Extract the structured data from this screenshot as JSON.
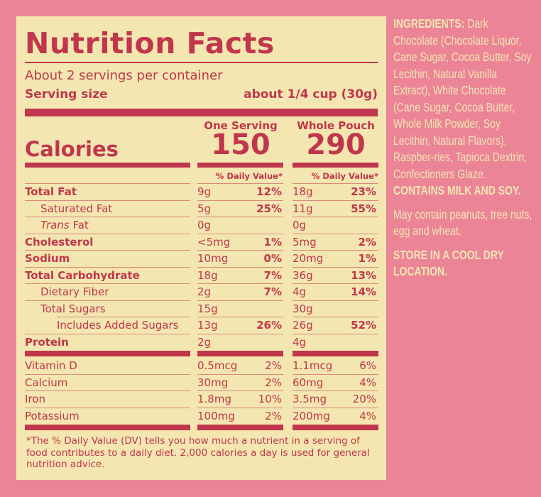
{
  "colors": {
    "background": "#ec8497",
    "panel": "#f3e6b1",
    "accent": "#c0364c"
  },
  "label": {
    "title": "Nutrition Facts",
    "servings_per_container": "About 2 servings per container",
    "serving_size_label": "Serving size",
    "serving_size_value": "about 1/4 cup (30g)",
    "calories_label": "Calories",
    "columns": [
      {
        "header": "One Serving",
        "calories": "150",
        "dv_header": "% Daily Value*"
      },
      {
        "header": "Whole Pouch",
        "calories": "290",
        "dv_header": "% Daily Value*"
      }
    ],
    "nutrients": [
      {
        "name": "Total Fat",
        "bold": true,
        "indent": 0,
        "one": "9g",
        "one_dv": "12%",
        "whole": "18g",
        "whole_dv": "23%"
      },
      {
        "name": "Saturated Fat",
        "bold": false,
        "indent": 1,
        "one": "5g",
        "one_dv": "25%",
        "whole": "11g",
        "whole_dv": "55%"
      },
      {
        "name": "Trans",
        "name_suffix": " Fat",
        "bold": false,
        "italic": true,
        "indent": 1,
        "one": "0g",
        "one_dv": "",
        "whole": "0g",
        "whole_dv": ""
      },
      {
        "name": "Cholesterol",
        "bold": true,
        "indent": 0,
        "one": "<5mg",
        "one_dv": "1%",
        "whole": "5mg",
        "whole_dv": "2%"
      },
      {
        "name": "Sodium",
        "bold": true,
        "indent": 0,
        "one": "10mg",
        "one_dv": "0%",
        "whole": "20mg",
        "whole_dv": "1%"
      },
      {
        "name": "Total Carbohydrate",
        "bold": true,
        "indent": 0,
        "one": "18g",
        "one_dv": "7%",
        "whole": "36g",
        "whole_dv": "13%"
      },
      {
        "name": "Dietary Fiber",
        "bold": false,
        "indent": 1,
        "one": "2g",
        "one_dv": "7%",
        "whole": "4g",
        "whole_dv": "14%"
      },
      {
        "name": "Total Sugars",
        "bold": false,
        "indent": 1,
        "one": "15g",
        "one_dv": "",
        "whole": "30g",
        "whole_dv": ""
      },
      {
        "name": "Includes Added Sugars",
        "bold": false,
        "indent": 2,
        "one": "13g",
        "one_dv": "26%",
        "whole": "26g",
        "whole_dv": "52%"
      },
      {
        "name": "Protein",
        "bold": true,
        "indent": 0,
        "one": "2g",
        "one_dv": "",
        "whole": "4g",
        "whole_dv": ""
      }
    ],
    "vitamins": [
      {
        "name": "Vitamin D",
        "one": "0.5mcg",
        "one_dv": "2%",
        "whole": "1.1mcg",
        "whole_dv": "6%"
      },
      {
        "name": "Calcium",
        "one": "30mg",
        "one_dv": "2%",
        "whole": "60mg",
        "whole_dv": "4%"
      },
      {
        "name": "Iron",
        "one": "1.8mg",
        "one_dv": "10%",
        "whole": "3.5mg",
        "whole_dv": "20%"
      },
      {
        "name": "Potassium",
        "one": "100mg",
        "one_dv": "2%",
        "whole": "200mg",
        "whole_dv": "4%"
      }
    ],
    "footnote": "*The % Daily Value (DV) tells you how much a nutrient in a serving of food contributes to a daily diet. 2,000 calories a day is used for general nutrition advice."
  },
  "ingredients": {
    "heading": "INGREDIENTS:",
    "text": "Dark Chocolate (Chocolate Liquor, Cane Sugar, Cocoa Butter, Soy Lecithin, Natural Vanilla Extract), White Chocolate (Cane Sugar, Cocoa Butter, Whole Milk Powder, Soy Lecithin, Natural Flavors), Raspber-ries, Tapioca Dextrin, Confectioners Glaze.",
    "allergen": "CONTAINS MILK AND SOY.",
    "may_contain": "May contain peanuts, tree nuts, egg and wheat.",
    "storage": "STORE IN A COOL DRY LOCATION."
  }
}
